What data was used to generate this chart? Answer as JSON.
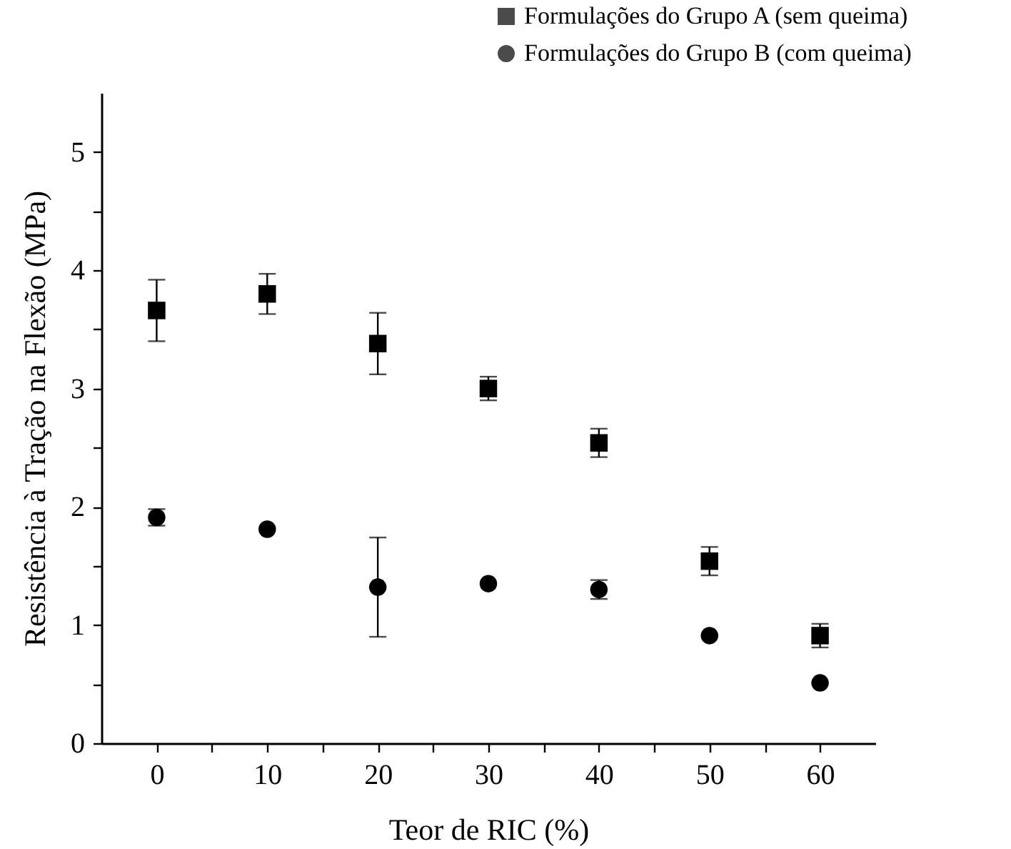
{
  "chart_data": {
    "type": "scatter",
    "xlabel": "Teor de RIC (%)",
    "ylabel": "Resistência à Tração na Flexão (MPa)",
    "x": [
      0,
      10,
      20,
      30,
      40,
      50,
      60
    ],
    "series": [
      {
        "name": "Formulações do Grupo A (sem queima)",
        "color": "#000000",
        "marker": "square",
        "values": [
          3.66,
          3.8,
          3.38,
          3.0,
          2.54,
          1.54,
          0.91
        ],
        "errors": [
          0.26,
          0.17,
          0.26,
          0.1,
          0.12,
          0.12,
          0.1
        ]
      },
      {
        "name": "Formulações do Grupo B (com queima)",
        "color": "#000000",
        "marker": "circle",
        "values": [
          1.91,
          1.81,
          1.32,
          1.35,
          1.3,
          0.91,
          0.51
        ],
        "errors": [
          0.07,
          null,
          0.42,
          null,
          0.08,
          null,
          null
        ]
      }
    ],
    "xlim": [
      -5,
      65
    ],
    "xticks": [
      0,
      {
        "value": 5,
        "label": null
      },
      10,
      {
        "value": 15,
        "label": null
      },
      20,
      {
        "value": 25,
        "label": null
      },
      30,
      {
        "value": 35,
        "label": null
      },
      40,
      {
        "value": 45,
        "label": null
      },
      50,
      {
        "value": 55,
        "label": null
      },
      60
    ],
    "ylim": [
      0,
      5.5
    ],
    "yticks": [
      0,
      {
        "value": 0.5,
        "label": null
      },
      1,
      {
        "value": 1.5,
        "label": null
      },
      2,
      {
        "value": 2.5,
        "label": null
      },
      3,
      {
        "value": 3.5,
        "label": null
      },
      4,
      {
        "value": 4.5,
        "label": null
      },
      5
    ],
    "grid": false,
    "legend": "top right"
  }
}
